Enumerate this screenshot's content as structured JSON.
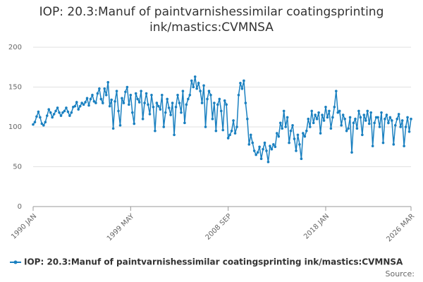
{
  "chart_data": {
    "type": "line",
    "title": "IOP: 20.3:Manuf of paintvarnishessimilar coatingsprinting ink/mastics:CVMNSA",
    "source_label": "Source:",
    "categories": [
      "1990 JAN",
      null,
      null,
      null,
      null,
      null,
      null,
      null,
      null,
      null,
      null,
      null,
      null,
      null,
      null,
      null,
      null,
      null,
      null,
      null,
      null,
      null,
      null,
      null,
      null,
      null,
      null,
      null,
      null,
      null,
      null,
      null,
      null,
      null,
      null,
      null,
      null,
      null,
      null,
      null,
      null,
      null,
      null,
      null,
      null,
      null,
      null,
      null,
      null,
      null,
      null,
      null,
      null,
      null,
      null,
      null,
      "1999 MAY",
      null,
      null,
      null,
      null,
      null,
      null,
      null,
      null,
      null,
      null,
      null,
      null,
      null,
      null,
      null,
      null,
      null,
      null,
      null,
      null,
      null,
      null,
      null,
      null,
      null,
      null,
      null,
      null,
      null,
      null,
      null,
      null,
      null,
      null,
      null,
      null,
      null,
      null,
      null,
      null,
      null,
      null,
      null,
      null,
      null,
      null,
      null,
      null,
      null,
      null,
      null,
      null,
      null,
      null,
      null,
      "2008 SEP",
      null,
      null,
      null,
      null,
      null,
      null,
      null,
      null,
      null,
      null,
      null,
      null,
      null,
      null,
      null,
      null,
      null,
      null,
      null,
      null,
      null,
      null,
      null,
      null,
      null,
      null,
      null,
      null,
      null,
      null,
      null,
      null,
      null,
      null,
      null,
      null,
      null,
      null,
      null,
      null,
      null,
      null,
      null,
      null,
      null,
      null,
      null,
      null,
      null,
      null,
      null,
      null,
      null,
      null,
      null,
      "2018 JAN",
      null,
      null,
      null,
      null,
      null,
      null,
      null,
      null,
      null,
      null,
      null,
      null,
      null,
      null,
      null,
      null,
      null,
      null,
      null,
      null,
      null,
      null,
      null,
      null,
      null,
      null,
      null,
      null,
      null,
      null,
      null,
      null,
      null,
      null,
      null,
      null,
      null,
      null,
      null,
      null,
      null,
      null,
      null,
      null,
      null,
      null,
      null,
      null,
      "2026 MAR"
    ],
    "series": [
      {
        "name": "IOP: 20.3:Manuf of paintvarnishessimilar coatingsprinting ink/mastics:CVMNSA",
        "color": "#1a80c0",
        "values": [
          103,
          106,
          113,
          119,
          112,
          104,
          102,
          106,
          114,
          122,
          118,
          112,
          116,
          120,
          124,
          118,
          114,
          118,
          120,
          124,
          119,
          114,
          118,
          125,
          126,
          131,
          122,
          126,
          130,
          128,
          131,
          136,
          127,
          135,
          140,
          132,
          130,
          142,
          148,
          135,
          130,
          148,
          140,
          156,
          126,
          134,
          98,
          132,
          145,
          120,
          102,
          136,
          130,
          144,
          150,
          128,
          140,
          118,
          104,
          142,
          135,
          131,
          145,
          110,
          130,
          142,
          128,
          116,
          140,
          125,
          95,
          130,
          126,
          122,
          140,
          100,
          118,
          135,
          124,
          115,
          130,
          90,
          125,
          140,
          130,
          118,
          145,
          105,
          128,
          135,
          140,
          158,
          150,
          163,
          148,
          155,
          145,
          130,
          152,
          100,
          135,
          145,
          140,
          110,
          130,
          95,
          128,
          135,
          120,
          96,
          133,
          128,
          86,
          90,
          95,
          108,
          92,
          100,
          140,
          155,
          148,
          158,
          130,
          110,
          78,
          90,
          80,
          70,
          65,
          68,
          75,
          60,
          72,
          80,
          70,
          56,
          76,
          72,
          78,
          75,
          92,
          88,
          105,
          98,
          120,
          100,
          112,
          80,
          95,
          102,
          85,
          70,
          90,
          78,
          60,
          92,
          88,
          95,
          110,
          100,
          120,
          105,
          115,
          110,
          118,
          92,
          115,
          108,
          125,
          112,
          120,
          98,
          112,
          125,
          145,
          118,
          120,
          102,
          115,
          110,
          95,
          98,
          112,
          68,
          105,
          110,
          98,
          120,
          112,
          90,
          115,
          108,
          120,
          104,
          118,
          76,
          105,
          112,
          112,
          100,
          118,
          80,
          110,
          115,
          105,
          112,
          108,
          78,
          102,
          110,
          116,
          100,
          108,
          76,
          100,
          112,
          94,
          110
        ]
      }
    ],
    "ylim": [
      0,
      200
    ],
    "yticks": [
      0,
      50,
      100,
      150,
      200
    ],
    "grid": true,
    "legend": "bottom"
  }
}
